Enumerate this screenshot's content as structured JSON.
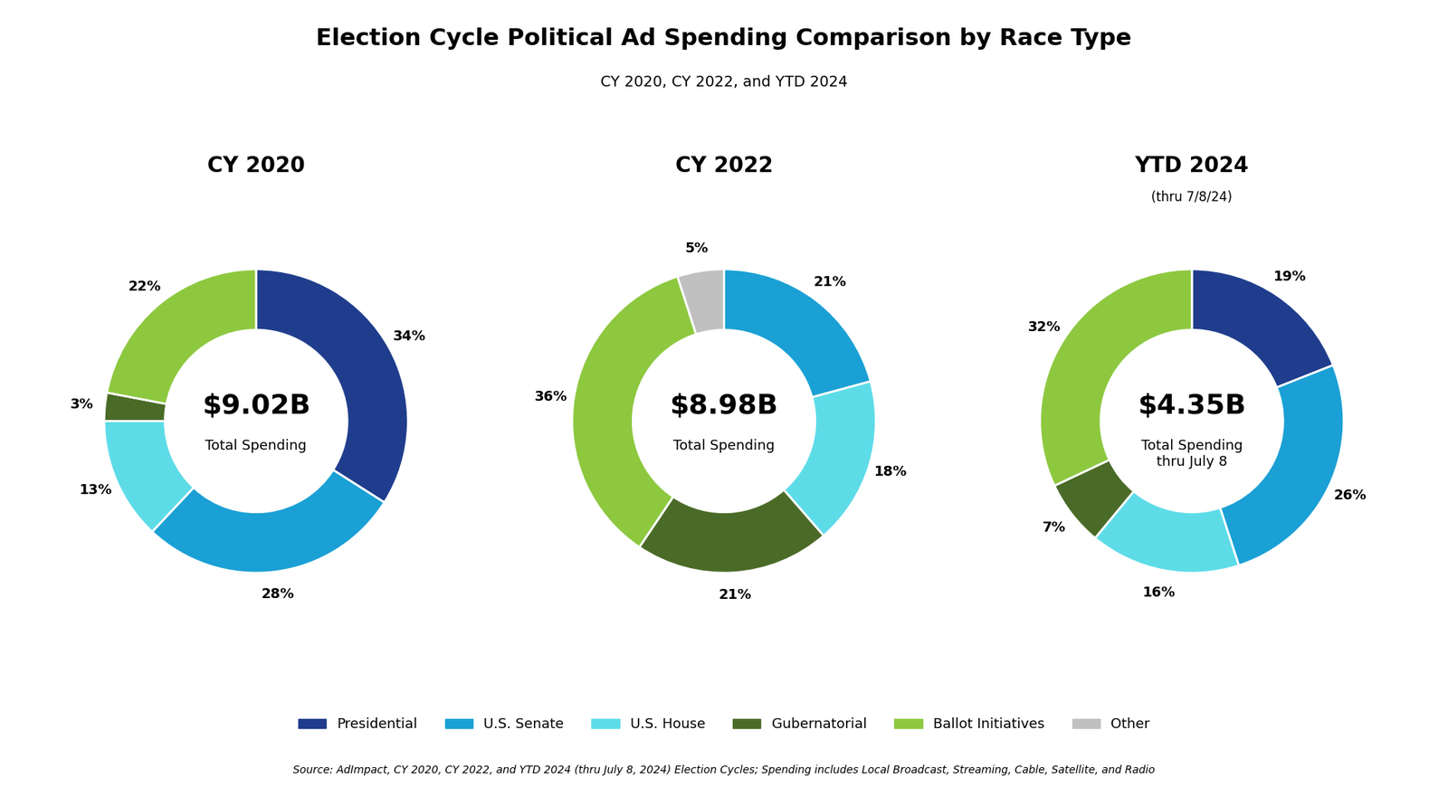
{
  "title": "Election Cycle Political Ad Spending Comparison by Race Type",
  "subtitle": "CY 2020, CY 2022, and YTD 2024",
  "source": "Source: AdImpact, CY 2020, CY 2022, and YTD 2024 (thru July 8, 2024) Election Cycles; Spending includes Local Broadcast, Streaming, Cable, Satellite, and Radio",
  "legend": "lower center",
  "chart_data": [
    {
      "type": "pie",
      "title": "CY 2020",
      "center_text": "$9.02B",
      "center_subtext": "Total Spending",
      "categories": [
        "Presidential",
        "U.S. Senate",
        "U.S. House",
        "Gubernatorial",
        "Ballot Initiatives"
      ],
      "values": [
        34,
        28,
        13,
        3,
        22
      ],
      "value_labels": [
        "34%",
        "28%",
        "13%",
        "3%",
        "22%"
      ],
      "colors": [
        "#1f3d8c",
        "#1aa0d5",
        "#5ddce8",
        "#4a6b27",
        "#8dc83f"
      ],
      "data_labels": true
    },
    {
      "type": "pie",
      "title": "CY 2022",
      "center_text": "$8.98B",
      "center_subtext": "Total Spending",
      "categories": [
        "U.S. Senate",
        "U.S. House",
        "Gubernatorial",
        "Ballot Initiatives",
        "Other"
      ],
      "values": [
        21,
        18,
        21,
        36,
        5
      ],
      "value_labels": [
        "21%",
        "18%",
        "21%",
        "36%",
        "5%"
      ],
      "colors": [
        "#1aa0d5",
        "#5ddce8",
        "#4a6b27",
        "#8dc83f",
        "#c0c0c0"
      ],
      "data_labels": true
    },
    {
      "type": "pie",
      "title": "YTD 2024",
      "subtitle": "(thru 7/8/24)",
      "center_text": "$4.35B",
      "center_subtext": "Total Spending\nthru July 8",
      "categories": [
        "Presidential",
        "U.S. Senate",
        "U.S. House",
        "Gubernatorial",
        "Ballot Initiatives"
      ],
      "values": [
        19,
        26,
        16,
        7,
        32
      ],
      "value_labels": [
        "19%",
        "26%",
        "16%",
        "7%",
        "32%"
      ],
      "colors": [
        "#1f3d8c",
        "#1aa0d5",
        "#5ddce8",
        "#4a6b27",
        "#8dc83f"
      ],
      "data_labels": true
    }
  ]
}
